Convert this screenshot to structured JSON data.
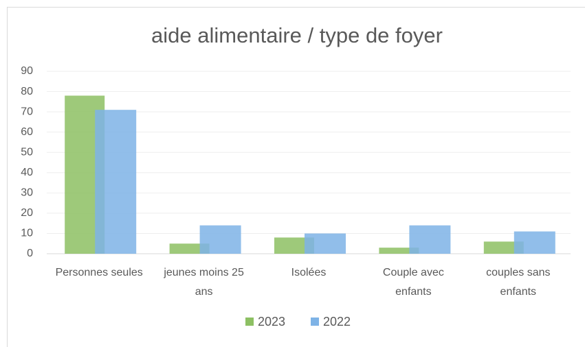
{
  "chart_data": {
    "type": "bar",
    "title": "aide alimentaire / type de foyer",
    "categories": [
      "Personnes seules",
      "jeunes moins 25 ans",
      "Isolées",
      "Couple avec enfants",
      "couples sans enfants"
    ],
    "series": [
      {
        "name": "2023",
        "color": "#8dc063",
        "values": [
          78,
          5,
          8,
          3,
          6
        ]
      },
      {
        "name": "2022",
        "color": "#7eb3e6",
        "values": [
          71,
          14,
          10,
          14,
          11
        ]
      }
    ],
    "ylim": [
      0,
      90
    ],
    "yticks": [
      0,
      10,
      20,
      30,
      40,
      50,
      60,
      70,
      80,
      90
    ],
    "grid": true,
    "legend": "bottom"
  }
}
